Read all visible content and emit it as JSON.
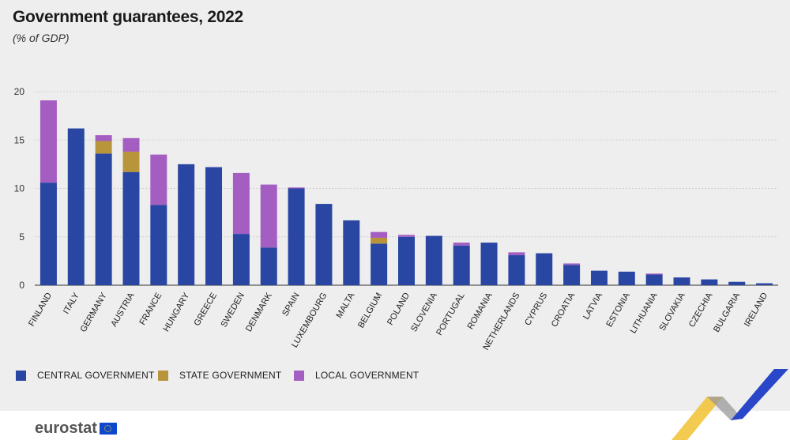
{
  "header": {
    "title": "Government guarantees, 2022",
    "subtitle": "(% of GDP)"
  },
  "colors": {
    "central": "#2a46a3",
    "state": "#b8953a",
    "local": "#a45ec2",
    "grid": "#cfcfcf",
    "axis": "#333333"
  },
  "chart_data": {
    "type": "bar",
    "stacked": true,
    "title": "Government guarantees, 2022",
    "subtitle": "(% of GDP)",
    "xlabel": "",
    "ylabel": "",
    "ylim": [
      0,
      20
    ],
    "yticks": [
      0,
      5,
      10,
      15,
      20
    ],
    "grid": true,
    "categories": [
      "FINLAND",
      "ITALY",
      "GERMANY",
      "AUSTRIA",
      "FRANCE",
      "HUNGARY",
      "GREECE",
      "SWEDEN",
      "DENMARK",
      "SPAIN",
      "LUXEMBOURG",
      "MALTA",
      "BELGIUM",
      "POLAND",
      "SLOVENIA",
      "PORTUGAL",
      "ROMANIA",
      "NETHERLANDS",
      "CYPRUS",
      "CROATIA",
      "LATVIA",
      "ESTONIA",
      "LITHUANIA",
      "SLOVAKIA",
      "CZECHIA",
      "BULGARIA",
      "IRELAND"
    ],
    "series": [
      {
        "name": "CENTRAL GOVERNMENT",
        "color": "#2a46a3",
        "values": [
          10.6,
          16.2,
          13.6,
          11.7,
          8.3,
          12.5,
          12.2,
          5.3,
          3.9,
          10.0,
          8.4,
          6.7,
          4.3,
          5.0,
          5.1,
          4.1,
          4.4,
          3.1,
          3.3,
          2.1,
          1.5,
          1.4,
          1.1,
          0.8,
          0.6,
          0.35,
          0.2
        ]
      },
      {
        "name": "STATE GOVERNMENT",
        "color": "#b8953a",
        "values": [
          0,
          0,
          1.3,
          2.1,
          0,
          0,
          0,
          0,
          0,
          0,
          0,
          0,
          0.6,
          0,
          0,
          0,
          0,
          0,
          0,
          0,
          0,
          0,
          0,
          0,
          0,
          0,
          0
        ]
      },
      {
        "name": "LOCAL GOVERNMENT",
        "color": "#a45ec2",
        "values": [
          8.5,
          0,
          0.6,
          1.4,
          5.2,
          0,
          0,
          6.3,
          6.5,
          0.1,
          0,
          0,
          0.6,
          0.2,
          0,
          0.3,
          0,
          0.3,
          0,
          0.15,
          0,
          0,
          0.1,
          0,
          0,
          0,
          0
        ]
      }
    ],
    "legend_position": "bottom-left"
  },
  "legend": [
    {
      "label": "CENTRAL GOVERNMENT",
      "color": "#2a46a3"
    },
    {
      "label": "STATE GOVERNMENT",
      "color": "#b8953a"
    },
    {
      "label": "LOCAL GOVERNMENT",
      "color": "#a45ec2"
    }
  ],
  "footer": {
    "brand": "eurostat",
    "flag_icon": "eu-flag-icon"
  }
}
